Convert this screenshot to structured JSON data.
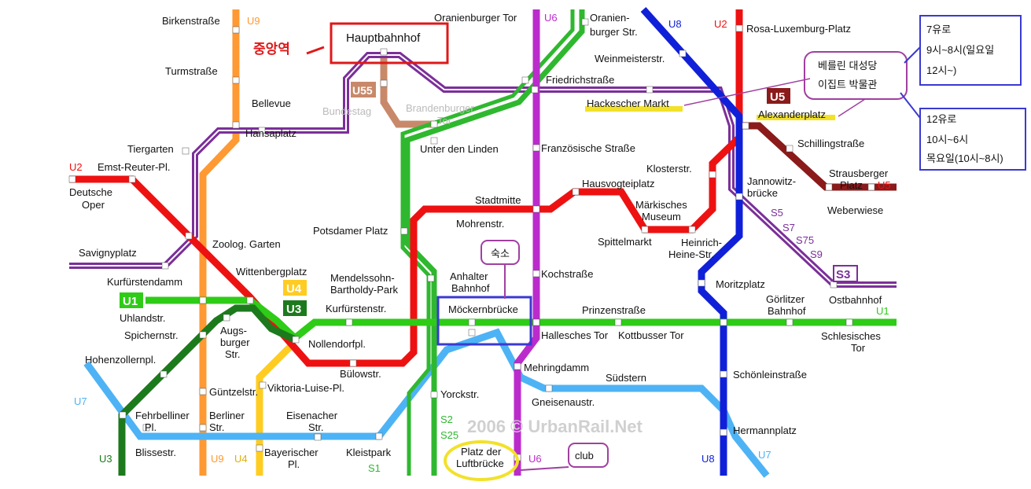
{
  "map_title": "",
  "watermark": "2006 © UrbanRail.Net",
  "colors": {
    "U1": "#2ecc17",
    "U2": "#ee1111",
    "U3": "#1c7a1c",
    "U4": "#ffcc22",
    "U5": "#8b1a1a",
    "U55": "#c8896a",
    "U6": "#bb2bcc",
    "U7": "#4db3f5",
    "U8": "#1020d8",
    "U9": "#ff9933",
    "S": "#7b2f99",
    "annotation_box": "#3a3ad0",
    "annotation_red": "#e01818",
    "bubble": "#a040a0",
    "highlight": "#f2e12a"
  },
  "line_badges": {
    "U1": "U1",
    "U3": "U3",
    "U4": "U4",
    "U5": "U5",
    "U55": "U55",
    "S3": "S3"
  },
  "line_labels": {
    "U1_right": "U1",
    "U2_left": "U2",
    "U2_top": "U2",
    "U3_bottom": "U3",
    "U4_bottom": "U4",
    "U5_right": "U5",
    "U6_top": "U6",
    "U6_bottom": "U6",
    "U7_left": "U7",
    "U7_right": "U7",
    "U8_top": "U8",
    "U8_bottom": "U8",
    "U9_top": "U9",
    "U9_bottom": "U9",
    "S2": "S2",
    "S25": "S25",
    "S1": "S1",
    "S5": "S5",
    "S7": "S7",
    "S75": "S75",
    "S9": "S9"
  },
  "stations": {
    "birkenstrasse": "Birkenstraße",
    "turmstrasse": "Turmstraße",
    "bellevue": "Bellevue",
    "hansaplatz": "Hansaplatz",
    "tiergarten": "Tiergarten",
    "ernst_reuter": "Emst-Reuter-Pl.",
    "deutsche_oper_1": "Deutsche",
    "deutsche_oper_2": "Oper",
    "savignyplatz": "Savignyplatz",
    "zoo": "Zoolog. Garten",
    "wittenbergplatz": "Wittenbergplatz",
    "kurfuerstendamm": "Kurfürstendamm",
    "uhlandstr": "Uhlandstr.",
    "spichernstr": "Spichernstr.",
    "augsburger_1": "Augs-",
    "augsburger_2": "burger",
    "augsburger_3": "Str.",
    "hohenzollernpl": "Hohenzollernpl.",
    "guentzelstr": "Güntzelstr.",
    "viktoria_luise": "Viktoria-Luise-Pl.",
    "nollendorfplatz": "Nollendorfpl.",
    "buelowstr": "Bülowstr.",
    "kurfuerstenstr": "Kurfürstenstr.",
    "mendelssohn_1": "Mendelssohn-",
    "mendelssohn_2": "Bartholdy-Park",
    "potsdamer": "Potsdamer Platz",
    "fehrbelliner_1": "Fehrbelliner",
    "fehrbelliner_2": "Pl.",
    "berliner_1": "Berliner",
    "berliner_2": "Str.",
    "eisenacher_1": "Eisenacher",
    "eisenacher_2": "Str.",
    "blissestr": "Blissestr.",
    "bayerischer_1": "Bayerischer",
    "bayerischer_2": "Pl.",
    "kleistpark": "Kleistpark",
    "yorckstr": "Yorckstr.",
    "oranienburger_tor": "Oranienburger Tor",
    "oranienburger_str_1": "Oranien-",
    "oranienburger_str_2": "burger Str.",
    "hauptbahnhof": "Hauptbahnhof",
    "bundestag": "Bundestag",
    "brandenburger_1": "Brandenburger",
    "brandenburger_2": "Tor",
    "unter_den_linden": "Unter den Linden",
    "friedrichstrasse": "Friedrichstraße",
    "weinmeisterstr": "Weinmeisterstr.",
    "hackescher_markt": "Hackescher Markt",
    "rosa_luxemburg": "Rosa-Luxemburg-Platz",
    "alexanderplatz": "Alexanderplatz",
    "schillingstrasse": "Schillingstraße",
    "strausberger_1": "Strausberger",
    "strausberger_2": "Platz",
    "weberwiese": "Weberwiese",
    "franzoesische": "Französische Straße",
    "klosterstr": "Klosterstr.",
    "jannowitz_1": "Jannowitz-",
    "jannowitz_2": "brücke",
    "hausvogteiplatz": "Hausvogteiplatz",
    "stadtmitte": "Stadtmitte",
    "mohrenstr": "Mohrenstr.",
    "maerkisches_1": "Märkisches",
    "maerkisches_2": "Museum",
    "spittelmarkt": "Spittelmarkt",
    "heinrich_heine_1": "Heinrich-",
    "heinrich_heine_2": "Heine-Str.",
    "anhalter_1": "Anhalter",
    "anhalter_2": "Bahnhof",
    "kochstrasse": "Kochstraße",
    "moritzplatz": "Moritzplatz",
    "moeckernbruecke": "Möckernbrücke",
    "prinzenstrasse": "Prinzenstraße",
    "goerlitzer_1": "Görlitzer",
    "goerlitzer_2": "Bahnhof",
    "ostbahnhof": "Ostbahnhof",
    "hallesches_tor": "Hallesches Tor",
    "kottbusser_tor": "Kottbusser Tor",
    "schlesisches_1": "Schlesisches",
    "schlesisches_2": "Tor",
    "mehringdamm": "Mehringdamm",
    "suedstern": "Südstern",
    "gneisenaustr": "Gneisenaustr.",
    "schoenleinstrasse": "Schönleinstraße",
    "hermannplatz": "Hermannplatz",
    "platz_der_1": "Platz der",
    "platz_der_2": "Luftbrücke"
  },
  "annotations": {
    "central_station_ko": "중앙역",
    "lodging": "숙소",
    "museum_line1": "베를린 대성당",
    "museum_line2": "이집트 박물관",
    "hours_7_line1": "7유로",
    "hours_7_line2": "9시~8시(일요일",
    "hours_7_line3": "12시~)",
    "hours_12_line1": "12유로",
    "hours_12_line2": "10시~6시",
    "hours_12_line3": "목요일(10시~8시)",
    "club": "club"
  }
}
